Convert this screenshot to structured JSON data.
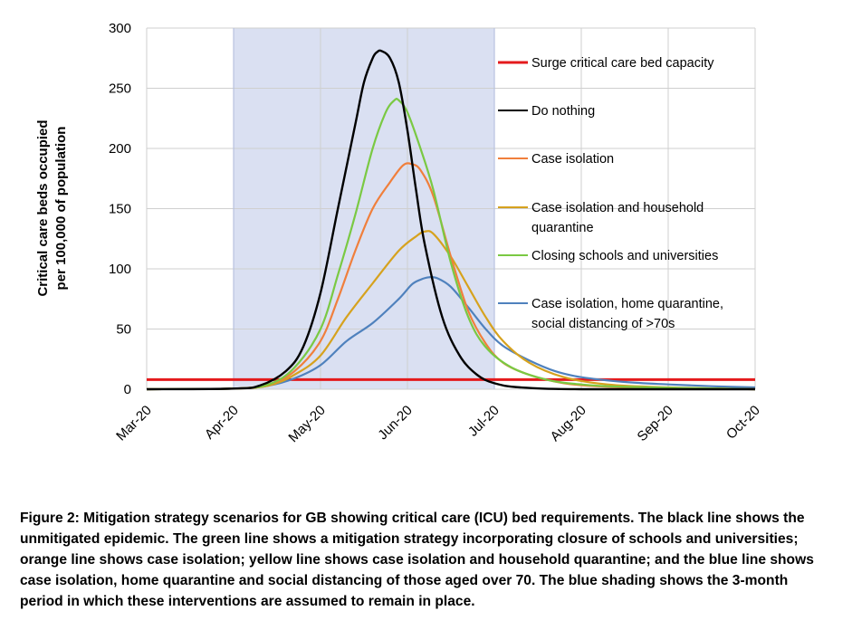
{
  "chart_data": {
    "type": "line",
    "ylabel_lines": [
      "Critical care beds occupied",
      "per 100,000 of population"
    ],
    "ylim": [
      0,
      300
    ],
    "yticks": [
      0,
      50,
      100,
      150,
      200,
      250,
      300
    ],
    "x_months": [
      "Mar-20",
      "Apr-20",
      "May-20",
      "Jun-20",
      "Jul-20",
      "Aug-20",
      "Sep-20",
      "Oct-20"
    ],
    "x_unit": "months since Mar-20",
    "shaded_period": {
      "from": "Apr-20",
      "to": "Jul-20",
      "color": "#dae0f2"
    },
    "grid": true,
    "legend_placement": "right",
    "capacity_line": {
      "name": "Surge critical care bed capacity",
      "value": 8,
      "color": "#e41a1c"
    },
    "series": [
      {
        "name": "Do nothing",
        "color": "#000000",
        "points": [
          [
            0,
            0
          ],
          [
            1,
            0.5
          ],
          [
            1.3,
            3
          ],
          [
            1.6,
            15
          ],
          [
            1.8,
            35
          ],
          [
            2,
            80
          ],
          [
            2.2,
            150
          ],
          [
            2.4,
            220
          ],
          [
            2.5,
            255
          ],
          [
            2.6,
            275
          ],
          [
            2.65,
            280
          ],
          [
            2.7,
            281
          ],
          [
            2.8,
            275
          ],
          [
            2.9,
            255
          ],
          [
            3,
            215
          ],
          [
            3.1,
            165
          ],
          [
            3.2,
            120
          ],
          [
            3.4,
            60
          ],
          [
            3.6,
            28
          ],
          [
            3.8,
            12
          ],
          [
            4,
            5
          ],
          [
            4.3,
            1.5
          ],
          [
            5,
            0
          ],
          [
            7,
            0
          ]
        ]
      },
      {
        "name": "Case isolation",
        "color": "#f07f3c",
        "points": [
          [
            0,
            0
          ],
          [
            1,
            0.5
          ],
          [
            1.4,
            4
          ],
          [
            1.7,
            15
          ],
          [
            2,
            40
          ],
          [
            2.2,
            75
          ],
          [
            2.4,
            115
          ],
          [
            2.6,
            150
          ],
          [
            2.8,
            172
          ],
          [
            2.95,
            186
          ],
          [
            3.05,
            187
          ],
          [
            3.15,
            182
          ],
          [
            3.3,
            160
          ],
          [
            3.5,
            110
          ],
          [
            3.7,
            65
          ],
          [
            3.9,
            38
          ],
          [
            4.1,
            22
          ],
          [
            4.4,
            12
          ],
          [
            4.8,
            5
          ],
          [
            5.3,
            2
          ],
          [
            6,
            1
          ],
          [
            7,
            0
          ]
        ]
      },
      {
        "name": "Case isolation and household quarantine",
        "color": "#d6a21e",
        "points": [
          [
            0,
            0
          ],
          [
            1,
            0.5
          ],
          [
            1.4,
            3
          ],
          [
            1.7,
            12
          ],
          [
            2,
            28
          ],
          [
            2.3,
            60
          ],
          [
            2.6,
            88
          ],
          [
            2.9,
            115
          ],
          [
            3.1,
            127
          ],
          [
            3.2,
            131
          ],
          [
            3.3,
            129
          ],
          [
            3.5,
            110
          ],
          [
            3.7,
            85
          ],
          [
            3.9,
            60
          ],
          [
            4.1,
            40
          ],
          [
            4.4,
            22
          ],
          [
            4.8,
            10
          ],
          [
            5.3,
            4
          ],
          [
            6,
            1.5
          ],
          [
            7,
            0
          ]
        ]
      },
      {
        "name": "Closing schools and universities",
        "color": "#7ac943",
        "points": [
          [
            0,
            0
          ],
          [
            1,
            0.5
          ],
          [
            1.4,
            4
          ],
          [
            1.7,
            18
          ],
          [
            2,
            50
          ],
          [
            2.2,
            95
          ],
          [
            2.4,
            145
          ],
          [
            2.6,
            200
          ],
          [
            2.75,
            230
          ],
          [
            2.85,
            240
          ],
          [
            2.9,
            240
          ],
          [
            3,
            230
          ],
          [
            3.15,
            200
          ],
          [
            3.3,
            165
          ],
          [
            3.5,
            105
          ],
          [
            3.7,
            60
          ],
          [
            3.9,
            35
          ],
          [
            4.2,
            18
          ],
          [
            4.6,
            8
          ],
          [
            5,
            4
          ],
          [
            5.5,
            2
          ],
          [
            7,
            0
          ]
        ]
      },
      {
        "name": "Case isolation, home quarantine, social distancing of >70s",
        "color": "#4f81bd",
        "points": [
          [
            0,
            0
          ],
          [
            1,
            0.5
          ],
          [
            1.4,
            3
          ],
          [
            1.7,
            9
          ],
          [
            2,
            20
          ],
          [
            2.3,
            40
          ],
          [
            2.6,
            55
          ],
          [
            2.9,
            75
          ],
          [
            3.05,
            87
          ],
          [
            3.15,
            91
          ],
          [
            3.25,
            93
          ],
          [
            3.35,
            92
          ],
          [
            3.5,
            85
          ],
          [
            3.7,
            68
          ],
          [
            3.9,
            50
          ],
          [
            4.1,
            36
          ],
          [
            4.4,
            24
          ],
          [
            4.7,
            15
          ],
          [
            5,
            10
          ],
          [
            5.5,
            6
          ],
          [
            6,
            4
          ],
          [
            6.5,
            2.5
          ],
          [
            7,
            1.5
          ]
        ]
      }
    ]
  },
  "caption": "Figure 2: Mitigation strategy scenarios for GB showing critical care (ICU) bed requirements. The black line shows the unmitigated epidemic. The green line shows a mitigation strategy incorporating closure of schools and universities; orange line shows case isolation; yellow line shows case isolation and household quarantine; and the blue line shows case isolation, home quarantine and social distancing of those aged over 70. The blue shading shows the 3-month period in which these interventions are assumed to remain in place."
}
